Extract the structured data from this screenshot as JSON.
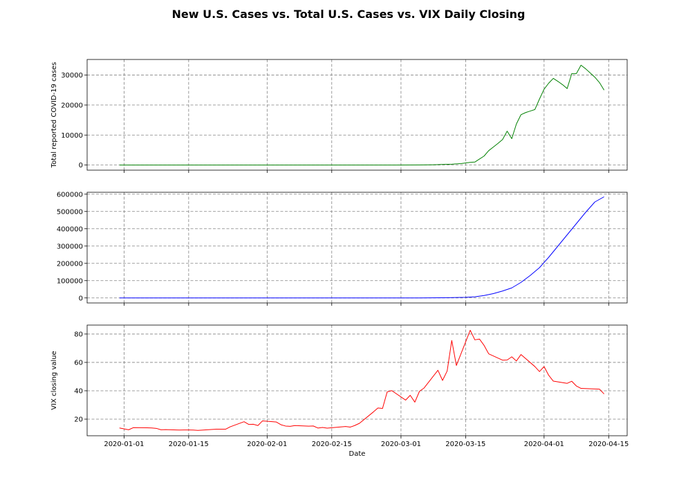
{
  "figure": {
    "title": "New U.S. Cases vs. Total U.S. Cases vs. VIX Daily Closing"
  },
  "chart_data": [
    {
      "type": "line",
      "panel": "top",
      "ylabel": "Total reported COVID-19 cases",
      "xlabel": "",
      "x_ticks": [
        "2020-01-01",
        "2020-01-15",
        "2020-02-01",
        "2020-02-15",
        "2020-03-01",
        "2020-03-15",
        "2020-04-01",
        "2020-04-15"
      ],
      "show_x_tick_labels": false,
      "xlim": [
        "2019-12-24",
        "2020-04-19"
      ],
      "y_ticks": [
        0,
        10000,
        20000,
        30000
      ],
      "ylim": [
        -1700,
        35200
      ],
      "grid": true,
      "color": "#008000",
      "series": [
        {
          "x": [
            "2019-12-31",
            "2020-01-20",
            "2020-02-10",
            "2020-02-29",
            "2020-03-05",
            "2020-03-08",
            "2020-03-10",
            "2020-03-12",
            "2020-03-13",
            "2020-03-14",
            "2020-03-15",
            "2020-03-16",
            "2020-03-17",
            "2020-03-18",
            "2020-03-19",
            "2020-03-20",
            "2020-03-21",
            "2020-03-22",
            "2020-03-23",
            "2020-03-24",
            "2020-03-25",
            "2020-03-26",
            "2020-03-27",
            "2020-03-28",
            "2020-03-29",
            "2020-03-30",
            "2020-03-31",
            "2020-04-01",
            "2020-04-02",
            "2020-04-03",
            "2020-04-04",
            "2020-04-05",
            "2020-04-06",
            "2020-04-07",
            "2020-04-08",
            "2020-04-09",
            "2020-04-10",
            "2020-04-11",
            "2020-04-12",
            "2020-04-13",
            "2020-04-14"
          ],
          "values": [
            0,
            0,
            0,
            10,
            40,
            100,
            200,
            300,
            400,
            500,
            700,
            900,
            1000,
            2000,
            3000,
            4800,
            6000,
            7200,
            8500,
            11300,
            8800,
            13700,
            16800,
            17500,
            18000,
            18500,
            22000,
            25300,
            27300,
            28900,
            27900,
            26800,
            25500,
            30500,
            30500,
            33300,
            32100,
            30700,
            29300,
            27500,
            25000
          ]
        }
      ]
    },
    {
      "type": "line",
      "panel": "middle",
      "ylabel": "",
      "xlabel": "",
      "x_ticks": [
        "2020-01-01",
        "2020-01-15",
        "2020-02-01",
        "2020-02-15",
        "2020-03-01",
        "2020-03-15",
        "2020-04-01",
        "2020-04-15"
      ],
      "show_x_tick_labels": false,
      "xlim": [
        "2019-12-24",
        "2020-04-19"
      ],
      "y_ticks": [
        0,
        100000,
        200000,
        300000,
        400000,
        500000,
        600000
      ],
      "ylim": [
        -29000,
        611000
      ],
      "grid": true,
      "color": "#0000ff",
      "series": [
        {
          "x": [
            "2019-12-31",
            "2020-02-15",
            "2020-03-05",
            "2020-03-10",
            "2020-03-15",
            "2020-03-17",
            "2020-03-19",
            "2020-03-21",
            "2020-03-23",
            "2020-03-25",
            "2020-03-27",
            "2020-03-29",
            "2020-03-31",
            "2020-04-02",
            "2020-04-04",
            "2020-04-06",
            "2020-04-08",
            "2020-04-10",
            "2020-04-12",
            "2020-04-14"
          ],
          "values": [
            0,
            15,
            200,
            900,
            3500,
            6500,
            14000,
            25000,
            40000,
            58000,
            90000,
            130000,
            175000,
            235000,
            300000,
            365000,
            430000,
            495000,
            555000,
            585000
          ]
        }
      ]
    },
    {
      "type": "line",
      "panel": "bottom",
      "ylabel": "VIX closing value",
      "xlabel": "Date",
      "x_ticks": [
        "2020-01-01",
        "2020-01-15",
        "2020-02-01",
        "2020-02-15",
        "2020-03-01",
        "2020-03-15",
        "2020-04-01",
        "2020-04-15"
      ],
      "show_x_tick_labels": true,
      "xlim": [
        "2019-12-24",
        "2020-04-19"
      ],
      "y_ticks": [
        20,
        40,
        60,
        80
      ],
      "ylim": [
        8.3,
        86.3
      ],
      "grid": true,
      "color": "#ff0000",
      "series": [
        {
          "x": [
            "2019-12-31",
            "2020-01-02",
            "2020-01-03",
            "2020-01-06",
            "2020-01-07",
            "2020-01-08",
            "2020-01-09",
            "2020-01-10",
            "2020-01-13",
            "2020-01-14",
            "2020-01-15",
            "2020-01-16",
            "2020-01-17",
            "2020-01-21",
            "2020-01-22",
            "2020-01-23",
            "2020-01-24",
            "2020-01-27",
            "2020-01-28",
            "2020-01-29",
            "2020-01-30",
            "2020-01-31",
            "2020-02-03",
            "2020-02-04",
            "2020-02-05",
            "2020-02-06",
            "2020-02-07",
            "2020-02-10",
            "2020-02-11",
            "2020-02-12",
            "2020-02-13",
            "2020-02-14",
            "2020-02-18",
            "2020-02-19",
            "2020-02-20",
            "2020-02-21",
            "2020-02-24",
            "2020-02-25",
            "2020-02-26",
            "2020-02-27",
            "2020-02-28",
            "2020-03-02",
            "2020-03-03",
            "2020-03-04",
            "2020-03-05",
            "2020-03-06",
            "2020-03-09",
            "2020-03-10",
            "2020-03-11",
            "2020-03-12",
            "2020-03-13",
            "2020-03-16",
            "2020-03-17",
            "2020-03-18",
            "2020-03-19",
            "2020-03-20",
            "2020-03-23",
            "2020-03-24",
            "2020-03-25",
            "2020-03-26",
            "2020-03-27",
            "2020-03-30",
            "2020-03-31",
            "2020-04-01",
            "2020-04-02",
            "2020-04-03",
            "2020-04-06",
            "2020-04-07",
            "2020-04-08",
            "2020-04-09",
            "2020-04-13",
            "2020-04-14"
          ],
          "values": [
            13.8,
            12.5,
            14.0,
            13.9,
            13.8,
            13.5,
            12.5,
            12.6,
            12.3,
            12.4,
            12.4,
            12.3,
            12.1,
            12.9,
            12.9,
            12.9,
            14.6,
            18.2,
            16.3,
            16.4,
            15.5,
            18.8,
            17.97,
            16.05,
            15.15,
            14.96,
            15.47,
            15.04,
            15.18,
            13.74,
            14.15,
            13.68,
            14.83,
            14.38,
            15.56,
            17.08,
            25.03,
            27.85,
            27.56,
            39.16,
            40.11,
            33.42,
            36.82,
            31.99,
            39.62,
            41.94,
            54.46,
            47.3,
            53.9,
            75.47,
            57.83,
            82.69,
            75.91,
            76.45,
            72.0,
            66.04,
            61.59,
            61.67,
            63.95,
            61.0,
            65.54,
            57.08,
            53.54,
            57.06,
            50.91,
            46.8,
            45.24,
            46.7,
            43.35,
            41.67,
            41.17,
            37.76
          ]
        }
      ]
    }
  ]
}
